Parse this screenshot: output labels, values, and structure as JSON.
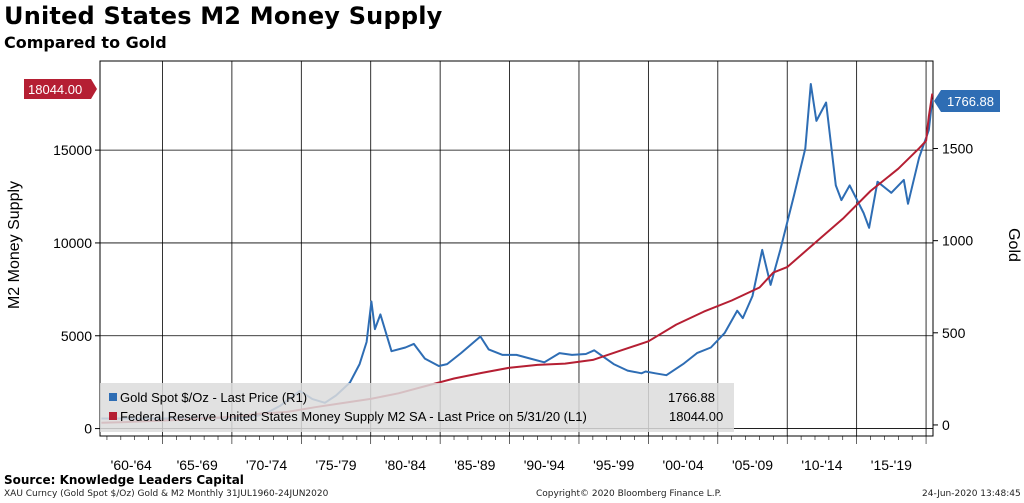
{
  "title": "United States M2 Money Supply",
  "subtitle": "Compared to Gold",
  "source": "Source: Knowledge Leaders Capital",
  "footer": {
    "left": "XAU Curncy (Gold Spot  $/Oz) Gold & M2  Monthly 31JUL1960-24JUN2020",
    "center": "Copyright© 2020 Bloomberg Finance L.P.",
    "right": "24-Jun-2020 13:48:45"
  },
  "chart_data": {
    "type": "line",
    "ylabel_left": "M2 Money Supply",
    "ylabel_right": "Gold",
    "ylim_left": [
      -400,
      19800
    ],
    "ylim_right": [
      -60,
      1975
    ],
    "yticks_left": [
      "0",
      "5000",
      "10000",
      "15000"
    ],
    "yticks_left_values": [
      0,
      5000,
      10000,
      15000
    ],
    "yticks_right": [
      "0",
      "500",
      "1000",
      "1500"
    ],
    "yticks_right_values": [
      0,
      500,
      1000,
      1500
    ],
    "xlim": [
      1960.5,
      2020.5
    ],
    "x_tick_labels": [
      "'60-'64",
      "'65-'69",
      "'70-'74",
      "'75-'79",
      "'80-'84",
      "'85-'89",
      "'90-'94",
      "'95-'99",
      "'00-'04",
      "'05-'09",
      "'10-'14",
      "'15-'19"
    ],
    "last_value_left": "18044.00",
    "last_value_right": "1766.88",
    "grid": true,
    "legend_position": "bottom-left",
    "colors": {
      "gold": "#2E6DB4",
      "m2": "#B51F33",
      "left_label_bg": "#B51F33",
      "right_label_bg": "#2E6DB4"
    },
    "series": [
      {
        "name": "Gold Spot $/Oz - Last Price (R1)",
        "legend_value": "1766.88",
        "axis": "right",
        "x": [
          1960.6,
          1965,
          1968,
          1970,
          1971.5,
          1972.5,
          1973.5,
          1974.9,
          1975.8,
          1976.7,
          1977.5,
          1978.5,
          1979.2,
          1979.7,
          1980.05,
          1980.3,
          1980.7,
          1981.5,
          1982.5,
          1983.1,
          1983.9,
          1984.9,
          1985.5,
          1986.5,
          1987.9,
          1988.5,
          1989.5,
          1990.5,
          1991.5,
          1992.5,
          1993.6,
          1994.5,
          1995.5,
          1996.1,
          1997.5,
          1998.5,
          1999.5,
          1999.8,
          2000.5,
          2001.3,
          2002.5,
          2003.5,
          2004.5,
          2005.5,
          2006.4,
          2006.8,
          2007.5,
          2008.2,
          2008.8,
          2009.5,
          2010.5,
          2011.3,
          2011.7,
          2012.1,
          2012.8,
          2013.5,
          2013.9,
          2014.5,
          2015.5,
          2015.9,
          2016.5,
          2017.5,
          2018.4,
          2018.7,
          2019.5,
          2020.2,
          2020.45
        ],
        "y": [
          35,
          35,
          39,
          36,
          42,
          65,
          105,
          185,
          140,
          120,
          160,
          230,
          330,
          450,
          670,
          520,
          600,
          400,
          420,
          440,
          360,
          320,
          330,
          390,
          480,
          410,
          380,
          380,
          360,
          340,
          390,
          380,
          385,
          405,
          330,
          295,
          280,
          290,
          280,
          270,
          330,
          390,
          420,
          500,
          620,
          580,
          700,
          950,
          760,
          950,
          1250,
          1500,
          1850,
          1650,
          1750,
          1300,
          1220,
          1300,
          1150,
          1070,
          1320,
          1260,
          1330,
          1200,
          1450,
          1600,
          1766.88
        ]
      },
      {
        "name": "Federal Reserve United States Money Supply M2 SA - Last Price on 5/31/20 (L1)",
        "legend_value": "18044.00",
        "axis": "left",
        "x": [
          1960.6,
          1962,
          1964,
          1966,
          1968,
          1970,
          1972,
          1974,
          1976,
          1978,
          1980,
          1982,
          1984,
          1986,
          1988,
          1990,
          1992,
          1994,
          1996,
          1998,
          2000,
          2002,
          2004,
          2006,
          2008,
          2009,
          2010,
          2012,
          2014,
          2016,
          2018,
          2019.5,
          2020.0,
          2020.2,
          2020.45
        ],
        "y": [
          310,
          340,
          400,
          460,
          550,
          630,
          800,
          900,
          1150,
          1380,
          1600,
          1900,
          2300,
          2700,
          3000,
          3280,
          3430,
          3500,
          3700,
          4200,
          4700,
          5600,
          6300,
          6900,
          7600,
          8400,
          8700,
          10000,
          11300,
          12800,
          14000,
          15100,
          15500,
          16800,
          18044
        ]
      }
    ]
  }
}
